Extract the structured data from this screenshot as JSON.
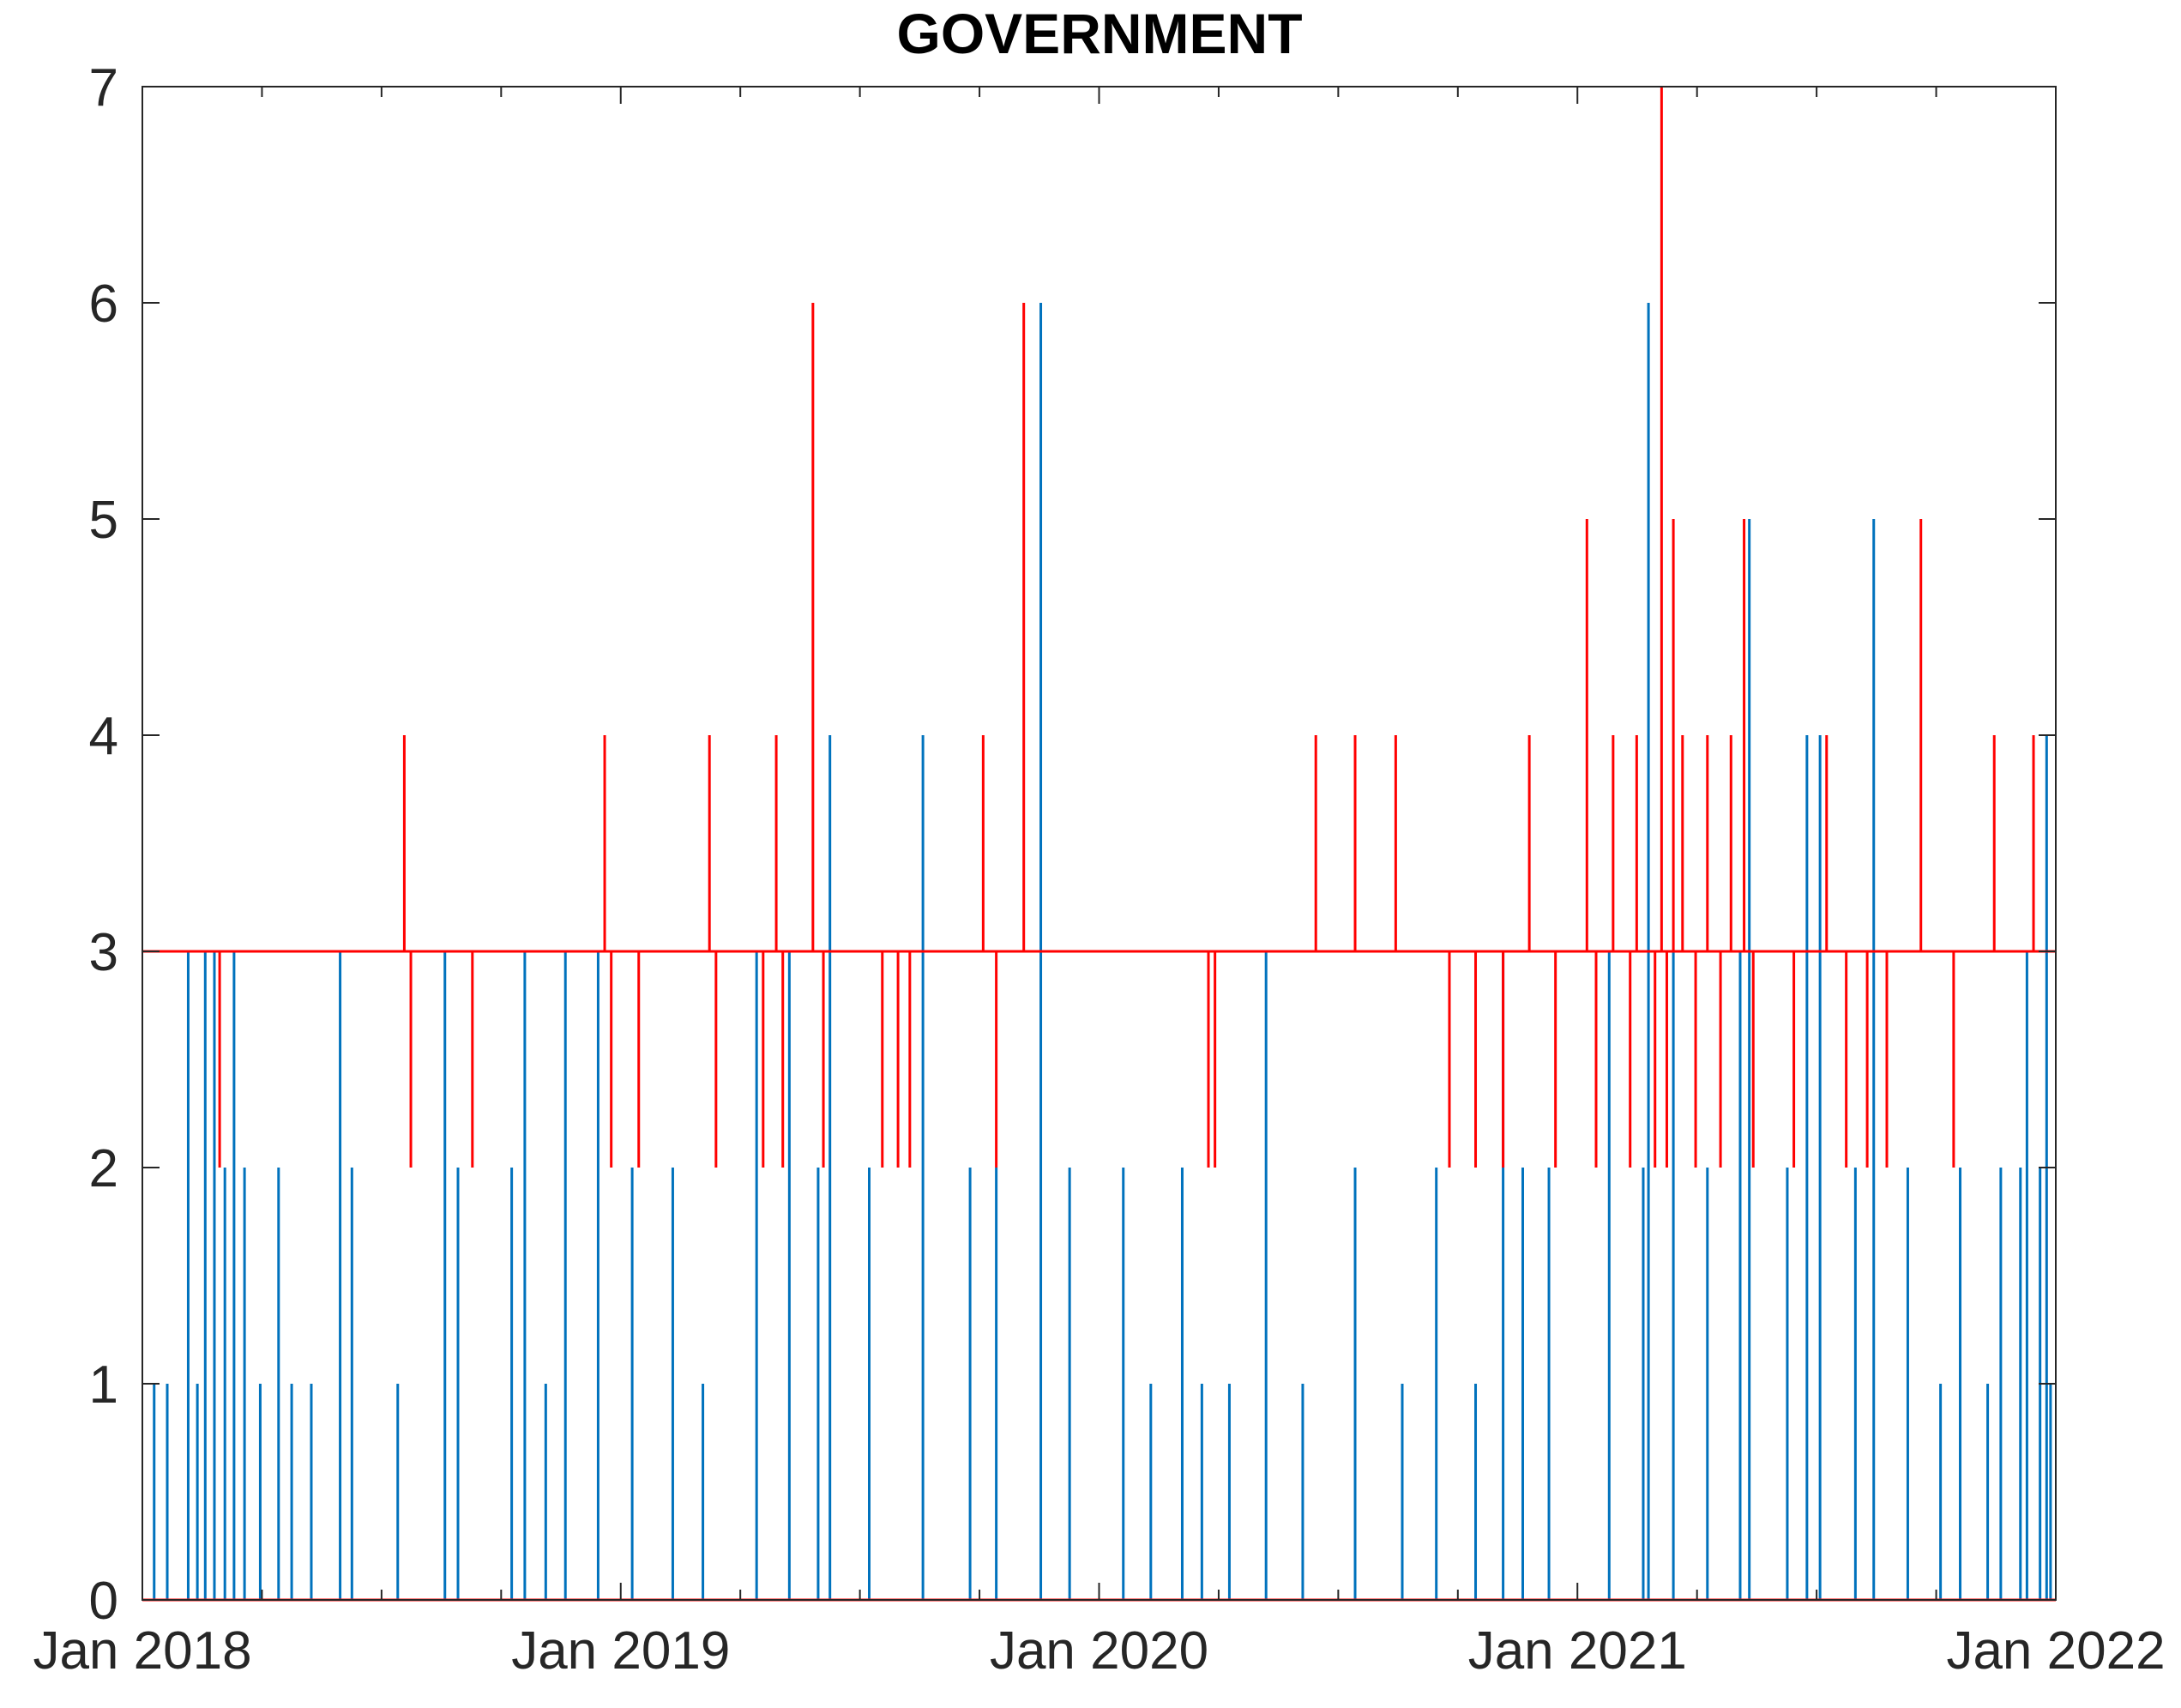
{
  "chart_data": {
    "type": "line",
    "title": "GOVERNMENT",
    "xlabel": "",
    "ylabel": "",
    "xlim": [
      "2018-01-01",
      "2022-01-01"
    ],
    "ylim": [
      0,
      7
    ],
    "x_ticks": [
      "Jan 2018",
      "Jan 2019",
      "Jan 2020",
      "Jan 2021",
      "Jan 2022"
    ],
    "y_ticks": [
      0,
      1,
      2,
      3,
      4,
      5,
      6,
      7
    ],
    "grid": false,
    "legend": "none",
    "baseline": 3,
    "series": [
      {
        "color": "#0072bd",
        "style": "daily spikes from 0",
        "points": [
          {
            "x": "2018-01-10",
            "y": 1
          },
          {
            "x": "2018-01-20",
            "y": 1
          },
          {
            "x": "2018-02-05",
            "y": 3
          },
          {
            "x": "2018-02-12",
            "y": 1
          },
          {
            "x": "2018-02-18",
            "y": 3
          },
          {
            "x": "2018-02-25",
            "y": 3
          },
          {
            "x": "2018-03-05",
            "y": 2
          },
          {
            "x": "2018-03-12",
            "y": 3
          },
          {
            "x": "2018-03-20",
            "y": 2
          },
          {
            "x": "2018-04-01",
            "y": 1
          },
          {
            "x": "2018-04-15",
            "y": 2
          },
          {
            "x": "2018-04-25",
            "y": 1
          },
          {
            "x": "2018-05-10",
            "y": 1
          },
          {
            "x": "2018-06-01",
            "y": 3
          },
          {
            "x": "2018-06-10",
            "y": 2
          },
          {
            "x": "2018-07-15",
            "y": 1
          },
          {
            "x": "2018-08-20",
            "y": 3
          },
          {
            "x": "2018-08-30",
            "y": 2
          },
          {
            "x": "2018-10-10",
            "y": 2
          },
          {
            "x": "2018-10-20",
            "y": 3
          },
          {
            "x": "2018-11-05",
            "y": 1
          },
          {
            "x": "2018-11-20",
            "y": 3
          },
          {
            "x": "2018-12-15",
            "y": 3
          },
          {
            "x": "2019-01-10",
            "y": 2
          },
          {
            "x": "2019-02-10",
            "y": 2
          },
          {
            "x": "2019-03-05",
            "y": 1
          },
          {
            "x": "2019-04-15",
            "y": 3
          },
          {
            "x": "2019-05-10",
            "y": 3
          },
          {
            "x": "2019-06-01",
            "y": 2
          },
          {
            "x": "2019-06-10",
            "y": 4
          },
          {
            "x": "2019-07-10",
            "y": 2
          },
          {
            "x": "2019-08-20",
            "y": 4
          },
          {
            "x": "2019-09-25",
            "y": 2
          },
          {
            "x": "2019-10-15",
            "y": 2
          },
          {
            "x": "2019-11-18",
            "y": 6
          },
          {
            "x": "2019-12-10",
            "y": 2
          },
          {
            "x": "2020-01-20",
            "y": 2
          },
          {
            "x": "2020-02-10",
            "y": 1
          },
          {
            "x": "2020-03-05",
            "y": 2
          },
          {
            "x": "2020-03-20",
            "y": 1
          },
          {
            "x": "2020-04-10",
            "y": 1
          },
          {
            "x": "2020-05-08",
            "y": 3
          },
          {
            "x": "2020-06-05",
            "y": 1
          },
          {
            "x": "2020-07-15",
            "y": 2
          },
          {
            "x": "2020-08-20",
            "y": 1
          },
          {
            "x": "2020-09-15",
            "y": 2
          },
          {
            "x": "2020-10-15",
            "y": 1
          },
          {
            "x": "2020-11-05",
            "y": 3
          },
          {
            "x": "2020-11-20",
            "y": 2
          },
          {
            "x": "2020-12-10",
            "y": 2
          },
          {
            "x": "2021-01-25",
            "y": 3
          },
          {
            "x": "2021-02-20",
            "y": 2
          },
          {
            "x": "2021-02-24",
            "y": 6
          },
          {
            "x": "2021-03-15",
            "y": 3
          },
          {
            "x": "2021-04-10",
            "y": 2
          },
          {
            "x": "2021-05-05",
            "y": 3
          },
          {
            "x": "2021-05-12",
            "y": 5
          },
          {
            "x": "2021-06-10",
            "y": 2
          },
          {
            "x": "2021-06-25",
            "y": 4
          },
          {
            "x": "2021-07-05",
            "y": 4
          },
          {
            "x": "2021-08-01",
            "y": 2
          },
          {
            "x": "2021-08-15",
            "y": 5
          },
          {
            "x": "2021-09-10",
            "y": 2
          },
          {
            "x": "2021-10-05",
            "y": 1
          },
          {
            "x": "2021-10-20",
            "y": 2
          },
          {
            "x": "2021-11-10",
            "y": 1
          },
          {
            "x": "2021-11-20",
            "y": 2
          },
          {
            "x": "2021-12-05",
            "y": 2
          },
          {
            "x": "2021-12-10",
            "y": 3
          },
          {
            "x": "2021-12-20",
            "y": 2
          },
          {
            "x": "2021-12-25",
            "y": 4
          },
          {
            "x": "2021-12-28",
            "y": 1
          }
        ]
      },
      {
        "color": "#ff0000",
        "style": "spikes from baseline 3",
        "points": [
          {
            "x": "2018-03-01",
            "y": 2
          },
          {
            "x": "2018-07-20",
            "y": 4
          },
          {
            "x": "2018-07-25",
            "y": 2
          },
          {
            "x": "2018-09-10",
            "y": 2
          },
          {
            "x": "2018-12-20",
            "y": 4
          },
          {
            "x": "2018-12-25",
            "y": 2
          },
          {
            "x": "2019-01-15",
            "y": 2
          },
          {
            "x": "2019-03-10",
            "y": 4
          },
          {
            "x": "2019-03-15",
            "y": 2
          },
          {
            "x": "2019-04-20",
            "y": 2
          },
          {
            "x": "2019-04-30",
            "y": 4
          },
          {
            "x": "2019-05-05",
            "y": 2
          },
          {
            "x": "2019-05-28",
            "y": 6
          },
          {
            "x": "2019-06-05",
            "y": 2
          },
          {
            "x": "2019-07-20",
            "y": 2
          },
          {
            "x": "2019-08-01",
            "y": 2
          },
          {
            "x": "2019-08-10",
            "y": 2
          },
          {
            "x": "2019-10-05",
            "y": 4
          },
          {
            "x": "2019-10-15",
            "y": 2
          },
          {
            "x": "2019-11-05",
            "y": 6
          },
          {
            "x": "2020-03-25",
            "y": 2
          },
          {
            "x": "2020-03-30",
            "y": 2
          },
          {
            "x": "2020-06-15",
            "y": 4
          },
          {
            "x": "2020-07-15",
            "y": 4
          },
          {
            "x": "2020-08-15",
            "y": 4
          },
          {
            "x": "2020-09-25",
            "y": 2
          },
          {
            "x": "2020-10-15",
            "y": 2
          },
          {
            "x": "2020-11-05",
            "y": 2
          },
          {
            "x": "2020-11-25",
            "y": 4
          },
          {
            "x": "2020-12-15",
            "y": 2
          },
          {
            "x": "2021-01-08",
            "y": 5
          },
          {
            "x": "2021-01-15",
            "y": 2
          },
          {
            "x": "2021-01-28",
            "y": 4
          },
          {
            "x": "2021-02-10",
            "y": 2
          },
          {
            "x": "2021-02-15",
            "y": 4
          },
          {
            "x": "2021-03-01",
            "y": 2
          },
          {
            "x": "2021-03-06",
            "y": 7
          },
          {
            "x": "2021-03-10",
            "y": 2
          },
          {
            "x": "2021-03-15",
            "y": 5
          },
          {
            "x": "2021-03-22",
            "y": 4
          },
          {
            "x": "2021-04-01",
            "y": 2
          },
          {
            "x": "2021-04-10",
            "y": 4
          },
          {
            "x": "2021-04-20",
            "y": 2
          },
          {
            "x": "2021-04-28",
            "y": 4
          },
          {
            "x": "2021-05-08",
            "y": 5
          },
          {
            "x": "2021-05-15",
            "y": 2
          },
          {
            "x": "2021-06-15",
            "y": 2
          },
          {
            "x": "2021-07-10",
            "y": 4
          },
          {
            "x": "2021-07-25",
            "y": 2
          },
          {
            "x": "2021-08-10",
            "y": 2
          },
          {
            "x": "2021-08-25",
            "y": 2
          },
          {
            "x": "2021-09-20",
            "y": 5
          },
          {
            "x": "2021-10-15",
            "y": 2
          },
          {
            "x": "2021-11-15",
            "y": 4
          },
          {
            "x": "2021-12-15",
            "y": 4
          }
        ]
      },
      {
        "color": "#ff0000",
        "style": "horizontal line",
        "points": [
          {
            "x": "2018-01-01",
            "y": 3
          },
          {
            "x": "2022-01-01",
            "y": 3
          }
        ]
      },
      {
        "color": "#ff0000",
        "style": "horizontal line",
        "points": [
          {
            "x": "2018-01-01",
            "y": 0
          },
          {
            "x": "2022-01-01",
            "y": 0
          }
        ]
      }
    ]
  }
}
